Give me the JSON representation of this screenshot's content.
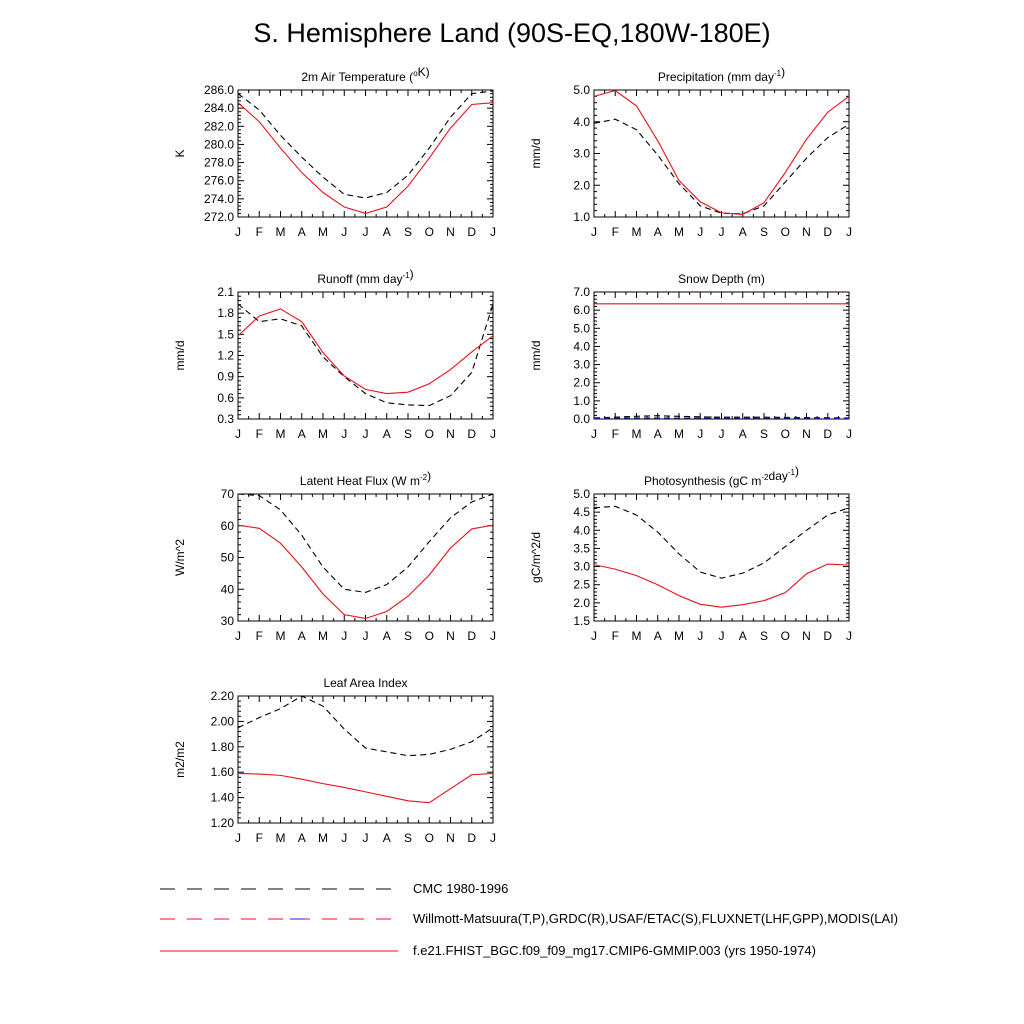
{
  "page": {
    "title": "S. Hemisphere Land (90S-EQ,180W-180E)"
  },
  "colors": {
    "model": "#e8101a",
    "obs_black": "#000000",
    "obs_blue": "#2020d0"
  },
  "months": [
    "J",
    "F",
    "M",
    "A",
    "M",
    "J",
    "J",
    "A",
    "S",
    "O",
    "N",
    "D",
    "J"
  ],
  "legend": [
    {
      "label": "CMC 1980-1996",
      "style": "dashed-black"
    },
    {
      "label": "Willmott-Matsuura(T,P),GRDC(R),USAF/ETAC(S),FLUXNET(LHF,GPP),MODIS(LAI)",
      "style": "dashed-red-blue"
    },
    {
      "label": "f.e21.FHIST_BGC.f09_f09_mg17.CMIP6-GMMIP.003 (yrs 1950-1974)",
      "style": "solid-red"
    }
  ],
  "chart_data": [
    {
      "id": "temperature",
      "type": "line",
      "title_parts": [
        [
          "2m Air Temperature (",
          ""
        ],
        [
          "o",
          "sup"
        ],
        [
          "K)",
          ""
        ]
      ],
      "ylabel": "K",
      "ylim": [
        272.0,
        286.0
      ],
      "decimals": 1,
      "yticks": [
        272.0,
        274.0,
        276.0,
        278.0,
        280.0,
        282.0,
        284.0,
        286.0
      ],
      "series": [
        {
          "name": "obs",
          "style": "dashed-black",
          "values": [
            285.6,
            283.8,
            281.0,
            278.6,
            276.4,
            274.5,
            274.1,
            274.7,
            276.6,
            279.6,
            283.0,
            285.6,
            285.9
          ]
        },
        {
          "name": "model",
          "style": "solid-red",
          "values": [
            284.6,
            282.5,
            279.6,
            276.9,
            274.7,
            273.1,
            272.4,
            273.1,
            275.4,
            278.5,
            281.8,
            284.4,
            284.6
          ]
        }
      ]
    },
    {
      "id": "precipitation",
      "type": "line",
      "title_parts": [
        [
          "Precipitation (mm day",
          ""
        ],
        [
          "-1",
          "sup"
        ],
        [
          ")",
          ""
        ]
      ],
      "ylabel": "mm/d",
      "ylim": [
        1.0,
        5.0
      ],
      "decimals": 1,
      "yticks": [
        1.0,
        2.0,
        3.0,
        4.0,
        5.0
      ],
      "series": [
        {
          "name": "obs",
          "style": "dashed-black",
          "values": [
            3.95,
            4.08,
            3.75,
            2.95,
            2.05,
            1.35,
            1.12,
            1.1,
            1.35,
            2.1,
            2.85,
            3.5,
            3.92
          ]
        },
        {
          "name": "model",
          "style": "solid-red",
          "values": [
            4.8,
            4.98,
            4.5,
            3.4,
            2.15,
            1.48,
            1.13,
            1.08,
            1.45,
            2.4,
            3.45,
            4.3,
            4.8
          ]
        }
      ]
    },
    {
      "id": "runoff",
      "type": "line",
      "title_parts": [
        [
          "Runoff (mm day",
          ""
        ],
        [
          "-1",
          "sup"
        ],
        [
          ")",
          ""
        ]
      ],
      "ylabel": "mm/d",
      "ylim": [
        0.3,
        2.1
      ],
      "decimals": 1,
      "yticks": [
        0.3,
        0.6,
        0.9,
        1.2,
        1.5,
        1.8,
        2.1
      ],
      "series": [
        {
          "name": "obs",
          "style": "dashed-black",
          "values": [
            1.93,
            1.68,
            1.72,
            1.62,
            1.18,
            0.9,
            0.66,
            0.53,
            0.5,
            0.49,
            0.63,
            0.96,
            1.93
          ]
        },
        {
          "name": "model",
          "style": "solid-red",
          "values": [
            1.48,
            1.76,
            1.86,
            1.68,
            1.24,
            0.91,
            0.72,
            0.66,
            0.68,
            0.8,
            1.0,
            1.25,
            1.48
          ]
        }
      ]
    },
    {
      "id": "snow",
      "type": "line",
      "title_parts": [
        [
          "Snow Depth (m)",
          ""
        ]
      ],
      "ylabel": "mm/d",
      "ylim": [
        0.0,
        7.0
      ],
      "decimals": 1,
      "yticks": [
        0.0,
        1.0,
        2.0,
        3.0,
        4.0,
        5.0,
        6.0,
        7.0
      ],
      "series": [
        {
          "name": "obs",
          "style": "dashed-black",
          "values": [
            0.06,
            0.1,
            0.15,
            0.18,
            0.15,
            0.12,
            0.1,
            0.1,
            0.1,
            0.09,
            0.08,
            0.07,
            0.06
          ]
        },
        {
          "name": "obs2",
          "style": "dashed-blue",
          "values": [
            0.04,
            0.05,
            0.06,
            0.06,
            0.05,
            0.05,
            0.05,
            0.05,
            0.05,
            0.05,
            0.05,
            0.04,
            0.04
          ]
        },
        {
          "name": "model",
          "style": "solid-red",
          "values": [
            6.35,
            6.35,
            6.35,
            6.35,
            6.35,
            6.35,
            6.35,
            6.35,
            6.35,
            6.35,
            6.35,
            6.35,
            6.35
          ]
        }
      ]
    },
    {
      "id": "lhf",
      "type": "line",
      "title_parts": [
        [
          "Latent Heat Flux (W m",
          ""
        ],
        [
          "-2",
          "sup"
        ],
        [
          ")",
          ""
        ]
      ],
      "ylabel": "W/m^2",
      "ylim": [
        30,
        70
      ],
      "decimals": 0,
      "yticks": [
        30,
        40,
        50,
        60,
        70
      ],
      "series": [
        {
          "name": "obs",
          "style": "dashed-black",
          "values": [
            70.0,
            69.5,
            65.0,
            57.0,
            47.0,
            40.0,
            39.0,
            41.5,
            47.0,
            55.0,
            62.5,
            67.5,
            70.0
          ]
        },
        {
          "name": "model",
          "style": "solid-red",
          "values": [
            60.2,
            59.2,
            54.5,
            47.0,
            38.5,
            32.0,
            30.8,
            33.0,
            37.8,
            44.5,
            53.0,
            59.0,
            60.2
          ]
        }
      ]
    },
    {
      "id": "gpp",
      "type": "line",
      "title_parts": [
        [
          "Photosynthesis (gC m",
          ""
        ],
        [
          "-2",
          "sup"
        ],
        [
          "day",
          ""
        ],
        [
          "-1",
          "sup"
        ],
        [
          ")",
          ""
        ]
      ],
      "ylabel": "gC/m^2/d",
      "ylim": [
        1.5,
        5.0
      ],
      "decimals": 1,
      "yticks": [
        1.5,
        2.0,
        2.5,
        3.0,
        3.5,
        4.0,
        4.5,
        5.0
      ],
      "series": [
        {
          "name": "obs",
          "style": "dashed-black",
          "values": [
            4.62,
            4.66,
            4.42,
            3.95,
            3.35,
            2.85,
            2.68,
            2.82,
            3.1,
            3.55,
            4.0,
            4.42,
            4.62
          ]
        },
        {
          "name": "model",
          "style": "solid-red",
          "values": [
            3.05,
            2.93,
            2.75,
            2.5,
            2.2,
            1.96,
            1.88,
            1.95,
            2.06,
            2.28,
            2.8,
            3.07,
            3.04
          ]
        }
      ]
    },
    {
      "id": "lai",
      "type": "line",
      "title_parts": [
        [
          "Leaf Area Index",
          ""
        ]
      ],
      "ylabel": "m2/m2",
      "ylim": [
        1.2,
        2.2
      ],
      "decimals": 2,
      "yticks": [
        1.2,
        1.4,
        1.6,
        1.8,
        2.0,
        2.2
      ],
      "series": [
        {
          "name": "obs",
          "style": "dashed-black",
          "values": [
            1.95,
            2.03,
            2.1,
            2.2,
            2.12,
            1.94,
            1.79,
            1.76,
            1.73,
            1.74,
            1.78,
            1.84,
            1.95
          ]
        },
        {
          "name": "model",
          "style": "solid-red",
          "values": [
            1.59,
            1.585,
            1.575,
            1.545,
            1.51,
            1.48,
            1.445,
            1.41,
            1.375,
            1.36,
            1.47,
            1.58,
            1.59
          ]
        }
      ]
    }
  ]
}
